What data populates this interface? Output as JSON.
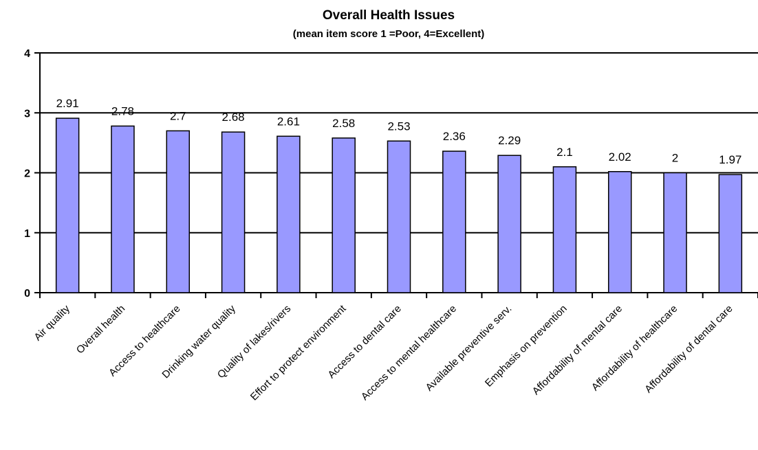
{
  "chart_data": {
    "type": "bar",
    "title": "Overall Health Issues",
    "subtitle": "(mean item score 1 =Poor, 4=Excellent)",
    "categories": [
      "Air quality",
      "Overall health",
      "Access to healthcare",
      "Drinking water quality",
      "Quality of lakes/rivers",
      "Effort to protect environment",
      "Access to dental care",
      "Access to mental healthcare",
      "Available preventive serv.",
      "Emphasis on prevention",
      "Affordability of mental care",
      "Affordability of healthcare",
      "Affordability of dental care"
    ],
    "values": [
      2.91,
      2.78,
      2.7,
      2.68,
      2.61,
      2.58,
      2.53,
      2.36,
      2.29,
      2.1,
      2.02,
      2,
      1.97
    ],
    "value_labels": [
      "2.91",
      "2.78",
      "2.7",
      "2.68",
      "2.61",
      "2.58",
      "2.53",
      "2.36",
      "2.29",
      "2.1",
      "2.02",
      "2",
      "1.97"
    ],
    "ylim": [
      0,
      4
    ],
    "yticks": [
      "0",
      "1",
      "2",
      "3",
      "4"
    ],
    "grid": true,
    "colors": {
      "bar_fill": "#9999ff",
      "bar_stroke": "#000000",
      "grid": "#000000",
      "text": "#000000"
    }
  }
}
